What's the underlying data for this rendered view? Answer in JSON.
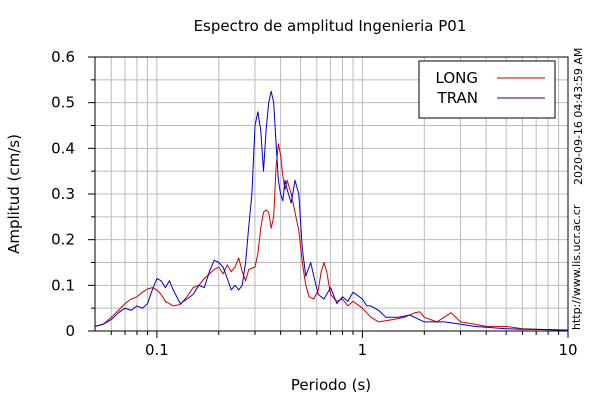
{
  "chart_data": {
    "type": "line",
    "title": "Espectro de amplitud Ingenieria P01",
    "xlabel": "Periodo (s)",
    "ylabel": "Amplitud (cm/s)",
    "xscale": "log",
    "xlim": [
      0.05,
      10
    ],
    "ylim": [
      0,
      0.6
    ],
    "x_ticks": [
      {
        "value": 0.1,
        "label": "0.1"
      },
      {
        "value": 1,
        "label": "1"
      },
      {
        "value": 10,
        "label": "10"
      }
    ],
    "y_ticks": [
      {
        "value": 0,
        "label": "0"
      },
      {
        "value": 0.1,
        "label": "0.1"
      },
      {
        "value": 0.2,
        "label": "0.2"
      },
      {
        "value": 0.3,
        "label": "0.3"
      },
      {
        "value": 0.4,
        "label": "0.4"
      },
      {
        "value": 0.5,
        "label": "0.5"
      },
      {
        "value": 0.6,
        "label": "0.6"
      }
    ],
    "grid": true,
    "legend_position": "top-right",
    "side_labels": {
      "timestamp": "2020-09-16 04:43:59 AM",
      "url": "http://www.lis.ucr.ac.cr"
    },
    "series": [
      {
        "name": "LONG",
        "color": "#cc0000",
        "points": [
          [
            0.05,
            0.01
          ],
          [
            0.055,
            0.015
          ],
          [
            0.06,
            0.03
          ],
          [
            0.065,
            0.045
          ],
          [
            0.07,
            0.06
          ],
          [
            0.075,
            0.07
          ],
          [
            0.08,
            0.075
          ],
          [
            0.085,
            0.085
          ],
          [
            0.09,
            0.092
          ],
          [
            0.095,
            0.095
          ],
          [
            0.1,
            0.09
          ],
          [
            0.105,
            0.08
          ],
          [
            0.11,
            0.065
          ],
          [
            0.12,
            0.055
          ],
          [
            0.13,
            0.058
          ],
          [
            0.14,
            0.075
          ],
          [
            0.15,
            0.095
          ],
          [
            0.16,
            0.1
          ],
          [
            0.17,
            0.115
          ],
          [
            0.18,
            0.125
          ],
          [
            0.19,
            0.135
          ],
          [
            0.2,
            0.14
          ],
          [
            0.21,
            0.125
          ],
          [
            0.22,
            0.145
          ],
          [
            0.23,
            0.13
          ],
          [
            0.24,
            0.14
          ],
          [
            0.25,
            0.16
          ],
          [
            0.26,
            0.13
          ],
          [
            0.27,
            0.11
          ],
          [
            0.28,
            0.135
          ],
          [
            0.3,
            0.14
          ],
          [
            0.31,
            0.17
          ],
          [
            0.32,
            0.225
          ],
          [
            0.33,
            0.26
          ],
          [
            0.34,
            0.265
          ],
          [
            0.35,
            0.26
          ],
          [
            0.36,
            0.225
          ],
          [
            0.37,
            0.25
          ],
          [
            0.38,
            0.36
          ],
          [
            0.39,
            0.41
          ],
          [
            0.4,
            0.385
          ],
          [
            0.41,
            0.34
          ],
          [
            0.42,
            0.31
          ],
          [
            0.43,
            0.33
          ],
          [
            0.45,
            0.3
          ],
          [
            0.47,
            0.26
          ],
          [
            0.49,
            0.22
          ],
          [
            0.51,
            0.15
          ],
          [
            0.53,
            0.1
          ],
          [
            0.55,
            0.075
          ],
          [
            0.58,
            0.07
          ],
          [
            0.61,
            0.09
          ],
          [
            0.63,
            0.13
          ],
          [
            0.65,
            0.15
          ],
          [
            0.67,
            0.13
          ],
          [
            0.7,
            0.08
          ],
          [
            0.75,
            0.065
          ],
          [
            0.8,
            0.07
          ],
          [
            0.85,
            0.055
          ],
          [
            0.9,
            0.065
          ],
          [
            1.0,
            0.05
          ],
          [
            1.1,
            0.03
          ],
          [
            1.2,
            0.02
          ],
          [
            1.4,
            0.025
          ],
          [
            1.6,
            0.03
          ],
          [
            1.8,
            0.04
          ],
          [
            1.9,
            0.042
          ],
          [
            2.0,
            0.03
          ],
          [
            2.3,
            0.02
          ],
          [
            2.5,
            0.03
          ],
          [
            2.7,
            0.04
          ],
          [
            3.0,
            0.02
          ],
          [
            3.5,
            0.015
          ],
          [
            4.0,
            0.01
          ],
          [
            5.0,
            0.01
          ],
          [
            6.0,
            0.005
          ],
          [
            8.0,
            0.003
          ],
          [
            10.0,
            0.002
          ]
        ]
      },
      {
        "name": "TRAN",
        "color": "#0000cc",
        "points": [
          [
            0.05,
            0.01
          ],
          [
            0.055,
            0.015
          ],
          [
            0.06,
            0.025
          ],
          [
            0.065,
            0.04
          ],
          [
            0.07,
            0.05
          ],
          [
            0.075,
            0.045
          ],
          [
            0.08,
            0.055
          ],
          [
            0.085,
            0.05
          ],
          [
            0.09,
            0.06
          ],
          [
            0.095,
            0.09
          ],
          [
            0.1,
            0.115
          ],
          [
            0.105,
            0.11
          ],
          [
            0.11,
            0.095
          ],
          [
            0.115,
            0.11
          ],
          [
            0.12,
            0.09
          ],
          [
            0.13,
            0.06
          ],
          [
            0.14,
            0.07
          ],
          [
            0.15,
            0.08
          ],
          [
            0.16,
            0.1
          ],
          [
            0.17,
            0.095
          ],
          [
            0.18,
            0.13
          ],
          [
            0.19,
            0.155
          ],
          [
            0.2,
            0.15
          ],
          [
            0.21,
            0.14
          ],
          [
            0.22,
            0.115
          ],
          [
            0.23,
            0.09
          ],
          [
            0.24,
            0.1
          ],
          [
            0.25,
            0.09
          ],
          [
            0.26,
            0.1
          ],
          [
            0.27,
            0.15
          ],
          [
            0.28,
            0.23
          ],
          [
            0.29,
            0.3
          ],
          [
            0.3,
            0.45
          ],
          [
            0.31,
            0.48
          ],
          [
            0.32,
            0.44
          ],
          [
            0.33,
            0.35
          ],
          [
            0.34,
            0.44
          ],
          [
            0.35,
            0.5
          ],
          [
            0.36,
            0.525
          ],
          [
            0.37,
            0.5
          ],
          [
            0.38,
            0.41
          ],
          [
            0.39,
            0.33
          ],
          [
            0.4,
            0.3
          ],
          [
            0.41,
            0.285
          ],
          [
            0.42,
            0.33
          ],
          [
            0.43,
            0.31
          ],
          [
            0.45,
            0.28
          ],
          [
            0.47,
            0.33
          ],
          [
            0.49,
            0.3
          ],
          [
            0.51,
            0.18
          ],
          [
            0.53,
            0.12
          ],
          [
            0.56,
            0.15
          ],
          [
            0.58,
            0.12
          ],
          [
            0.61,
            0.08
          ],
          [
            0.65,
            0.07
          ],
          [
            0.7,
            0.095
          ],
          [
            0.75,
            0.06
          ],
          [
            0.8,
            0.075
          ],
          [
            0.85,
            0.065
          ],
          [
            0.9,
            0.085
          ],
          [
            1.0,
            0.07
          ],
          [
            1.05,
            0.055
          ],
          [
            1.1,
            0.055
          ],
          [
            1.2,
            0.045
          ],
          [
            1.3,
            0.03
          ],
          [
            1.5,
            0.03
          ],
          [
            1.7,
            0.035
          ],
          [
            2.0,
            0.02
          ],
          [
            2.2,
            0.02
          ],
          [
            2.5,
            0.02
          ],
          [
            3.0,
            0.015
          ],
          [
            3.5,
            0.01
          ],
          [
            4.0,
            0.008
          ],
          [
            5.0,
            0.005
          ],
          [
            6.0,
            0.004
          ],
          [
            8.0,
            0.003
          ],
          [
            10.0,
            0.002
          ]
        ]
      }
    ]
  }
}
